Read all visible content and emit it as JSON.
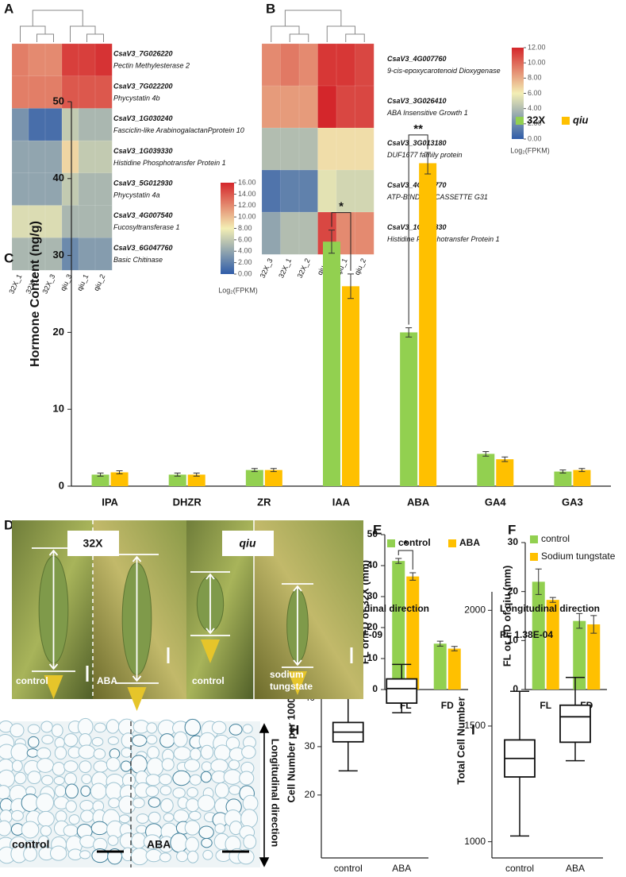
{
  "chart_data": [
    {
      "type": "heatmap",
      "panel": "A",
      "columns": [
        "32X_1",
        "32X_2",
        "32X_3",
        "qiu_3",
        "qiu_1",
        "qiu_2"
      ],
      "rows": [
        {
          "id": "CsaV3_7G026220",
          "name": "Pectin Methylesterase 2"
        },
        {
          "id": "CsaV3_7G022200",
          "name": "Phycystatin 4b"
        },
        {
          "id": "CsaV3_1G030240",
          "name": "Fasciclin-like ArabinogalactanPprotein 10"
        },
        {
          "id": "CsaV3_1G039330",
          "name": "Histidine Phosphotransfer Protein 1"
        },
        {
          "id": "CsaV3_5G012930",
          "name": "Phycystatin 4a"
        },
        {
          "id": "CsaV3_4G007540",
          "name": "Fucosyltransferase 1"
        },
        {
          "id": "CsaV3_6G047760",
          "name": "Basic Chitinase"
        }
      ],
      "values": [
        [
          12.5,
          12,
          12,
          15,
          15,
          15.5
        ],
        [
          12.5,
          12.5,
          12.5,
          14,
          14,
          14
        ],
        [
          3,
          1,
          1,
          6,
          5,
          5
        ],
        [
          4,
          4,
          4,
          9,
          6,
          6
        ],
        [
          4,
          4,
          4,
          6,
          5,
          5
        ],
        [
          7,
          7,
          7,
          5,
          5,
          5
        ],
        [
          5,
          5,
          5,
          2.5,
          3.5,
          3.5
        ]
      ],
      "zlim": [
        0,
        16
      ],
      "zticks": [
        {
          "value": 0,
          "label": "0.00"
        },
        {
          "value": 2,
          "label": "2.00"
        },
        {
          "value": 4,
          "label": "4.00"
        },
        {
          "value": 6,
          "label": "6.00"
        },
        {
          "value": 8,
          "label": "8.00"
        },
        {
          "value": 10,
          "label": "10.00"
        },
        {
          "value": 12,
          "label": "12.00"
        },
        {
          "value": 14,
          "label": "14.00"
        },
        {
          "value": 16,
          "label": "16.00"
        }
      ],
      "colormap": [
        "#2f5ca9",
        "#f3eeb4",
        "#d4262b"
      ],
      "colorbar_label": "Log₂(FPKM)"
    },
    {
      "type": "heatmap",
      "panel": "B",
      "columns": [
        "32X_3",
        "32X_1",
        "32X_2",
        "qiu_3",
        "qiu_1",
        "qiu_2"
      ],
      "rows": [
        {
          "id": "CsaV3_4G007760",
          "name": "9-cis-epoxycarotenoid Dioxygenase"
        },
        {
          "id": "CsaV3_3G026410",
          "name": "ABA Insensitive Growth 1"
        },
        {
          "id": "CsaV3_3G013180",
          "name": "DUF1677 family protein"
        },
        {
          "id": "CsaV3_4G007770",
          "name": "ATP-BINDING CASSETTE G31"
        },
        {
          "id": "CsaV3_1G039330",
          "name": "Histidine Phosphotransfer Protein 1"
        }
      ],
      "values": [
        [
          9,
          9.5,
          9,
          11.5,
          11.5,
          11
        ],
        [
          8.5,
          8.5,
          8.5,
          12,
          11,
          11
        ],
        [
          4,
          4,
          4,
          6.5,
          6.5,
          6.5
        ],
        [
          1,
          1.5,
          1.5,
          5.5,
          5,
          5
        ],
        [
          3,
          4,
          4,
          11,
          9,
          9
        ]
      ],
      "zlim": [
        0,
        12
      ],
      "zticks": [
        {
          "value": 0,
          "label": "0.00"
        },
        {
          "value": 2,
          "label": "2.00"
        },
        {
          "value": 4,
          "label": "4.00"
        },
        {
          "value": 6,
          "label": "6.00"
        },
        {
          "value": 8,
          "label": "8.00"
        },
        {
          "value": 10,
          "label": "10.00"
        },
        {
          "value": 12,
          "label": "12.00"
        }
      ],
      "colormap": [
        "#2f5ca9",
        "#f3eeb4",
        "#d4262b"
      ],
      "colorbar_label": "Log₂(FPKM)"
    },
    {
      "type": "bar",
      "panel": "C",
      "ylabel": "Hormone Content (ng/g)",
      "categories": [
        "IPA",
        "DHZR",
        "ZR",
        "IAA",
        "ABA",
        "GA4",
        "GA3"
      ],
      "series": [
        {
          "name": "32X",
          "color": "#92d050",
          "values": [
            1.5,
            1.5,
            2.1,
            31.8,
            20,
            4.2,
            1.9
          ],
          "errors": [
            0.2,
            0.2,
            0.2,
            1.5,
            0.6,
            0.3,
            0.2
          ]
        },
        {
          "name": "qiu",
          "color": "#ffc000",
          "values": [
            1.8,
            1.5,
            2.1,
            26,
            42,
            3.5,
            2.1
          ],
          "errors": [
            0.2,
            0.2,
            0.2,
            1.6,
            1.4,
            0.3,
            0.2
          ]
        }
      ],
      "significance": [
        null,
        null,
        null,
        "*",
        "**",
        null,
        null
      ],
      "ylim": [
        0,
        50
      ],
      "yticks": [
        0,
        10,
        20,
        30,
        40,
        50
      ],
      "legend": "upper right"
    },
    {
      "type": "bar",
      "panel": "E",
      "ylabel": "FL or FD of 32X (mm)",
      "categories": [
        "FL",
        "FD"
      ],
      "series": [
        {
          "name": "control",
          "color": "#92d050",
          "values": [
            41.5,
            14.8
          ],
          "errors": [
            0.8,
            0.8
          ]
        },
        {
          "name": "ABA",
          "color": "#ffc000",
          "values": [
            36.5,
            13.2
          ],
          "errors": [
            1.2,
            0.7
          ]
        }
      ],
      "significance": [
        "*",
        null
      ],
      "ylim": [
        0,
        50
      ],
      "yticks": [
        0,
        10,
        20,
        30,
        40,
        50
      ],
      "legend": "top"
    },
    {
      "type": "bar",
      "panel": "F",
      "ylabel": "FL or FD of qiu (mm)",
      "categories": [
        "FL",
        "FD"
      ],
      "series": [
        {
          "name": "control",
          "color": "#92d050",
          "values": [
            22,
            14
          ],
          "errors": [
            2.6,
            1.5
          ]
        },
        {
          "name": "Sodium tungstate",
          "color": "#ffc000",
          "values": [
            18.3,
            13.3
          ],
          "errors": [
            0.5,
            1.8
          ]
        }
      ],
      "ylim": [
        0,
        30
      ],
      "yticks": [
        0,
        10,
        20,
        30
      ],
      "legend": "upper left"
    },
    {
      "type": "box",
      "panel": "H",
      "title": "Longitudinal direction",
      "annotation": "P= 7.14E-09",
      "ylabel": "Cell Number per 1000 μm",
      "categories": [
        "control",
        "ABA"
      ],
      "boxes": [
        {
          "whisker_low": 25,
          "q1": 31,
          "median": 33,
          "q3": 35,
          "whisker_high": 40
        },
        {
          "whisker_low": 37,
          "q1": 39,
          "median": 42,
          "q3": 44,
          "whisker_high": 47
        }
      ],
      "ylim": [
        7,
        62
      ],
      "yticks": [
        20,
        30,
        40
      ]
    },
    {
      "type": "box",
      "panel": "I",
      "title": "Longitudinal direction",
      "annotation": "P= 1.38E-04",
      "ylabel": "Total Cell Number",
      "categories": [
        "control",
        "ABA"
      ],
      "boxes": [
        {
          "whisker_low": 1025,
          "q1": 1280,
          "median": 1360,
          "q3": 1440,
          "whisker_high": 1650
        },
        {
          "whisker_low": 1350,
          "q1": 1430,
          "median": 1540,
          "q3": 1590,
          "whisker_high": 1710
        }
      ],
      "ylim": [
        930,
        2080
      ],
      "yticks": [
        1000,
        1500,
        2000
      ]
    }
  ],
  "photo_d": {
    "panel": "D",
    "genotypes": [
      "32X",
      "qiu"
    ],
    "treatments": [
      [
        "control"
      ],
      [
        "ABA"
      ],
      [
        "control"
      ],
      [
        "sodium",
        "tungstate"
      ]
    ]
  },
  "photo_g": {
    "panel": "G",
    "treatments": [
      "control",
      "ABA"
    ],
    "direction": "Longitudinal direction"
  }
}
